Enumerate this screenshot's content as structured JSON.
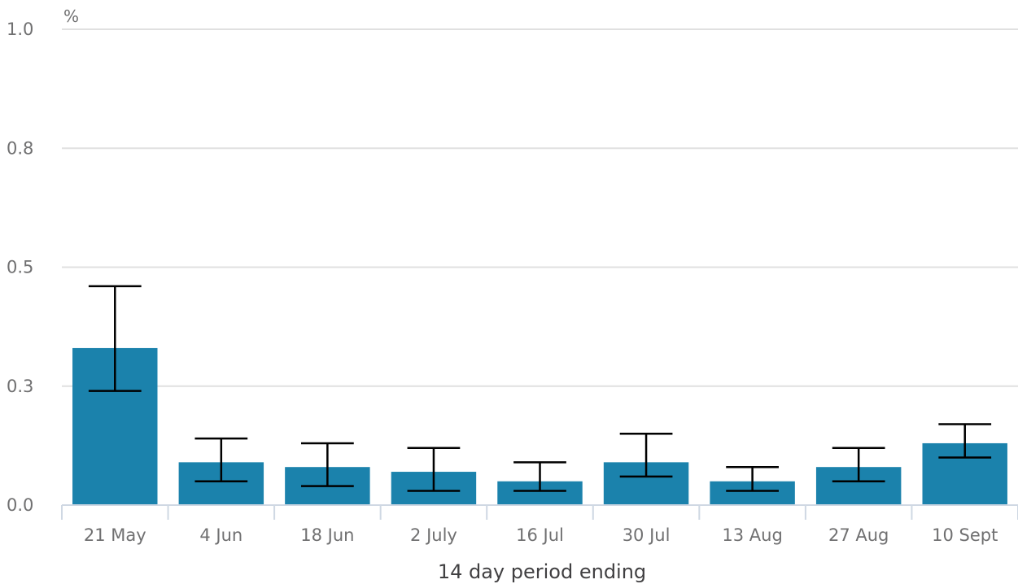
{
  "chart_data": {
    "type": "bar",
    "unit_label": "%",
    "xlabel": "14 day period ending",
    "ylabel": "",
    "ylim": [
      0,
      1.0
    ],
    "y_ticks": [
      {
        "value": 0.0,
        "label": "0.0"
      },
      {
        "value": 0.25,
        "label": "0.3"
      },
      {
        "value": 0.5,
        "label": "0.5"
      },
      {
        "value": 0.75,
        "label": "0.8"
      },
      {
        "value": 1.0,
        "label": "1.0"
      }
    ],
    "categories": [
      "21 May",
      "4 Jun",
      "18 Jun",
      "2 July",
      "16 Jul",
      "30 Jul",
      "13 Aug",
      "27 Aug",
      "10 Sept"
    ],
    "values": [
      0.33,
      0.09,
      0.08,
      0.07,
      0.05,
      0.09,
      0.05,
      0.08,
      0.13
    ],
    "lower": [
      0.24,
      0.05,
      0.04,
      0.03,
      0.03,
      0.06,
      0.03,
      0.05,
      0.1
    ],
    "upper": [
      0.46,
      0.14,
      0.13,
      0.12,
      0.09,
      0.15,
      0.08,
      0.12,
      0.17
    ],
    "bar_color": "#1b82ac",
    "error_bar_color": "#000000",
    "grid": true,
    "legend": "none"
  }
}
